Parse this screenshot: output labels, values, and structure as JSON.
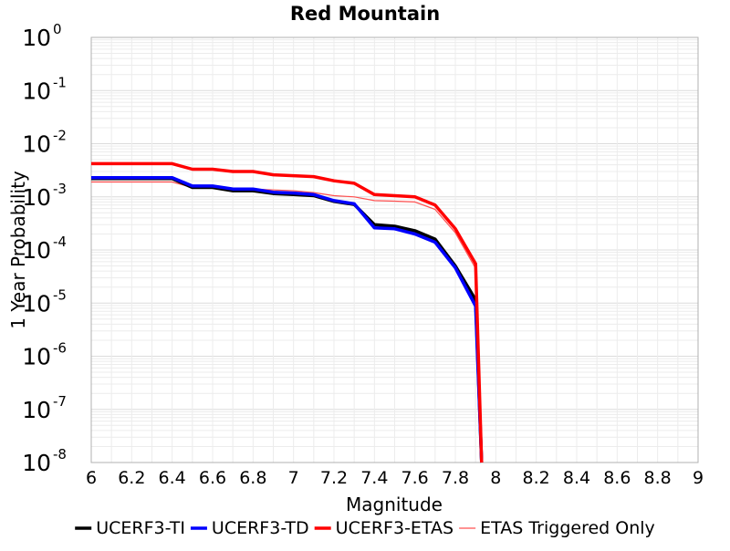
{
  "chart_data": {
    "type": "line",
    "title": "Red Mountain",
    "xlabel": "Magnitude",
    "ylabel": "1 Year Probability",
    "xlim": [
      6,
      9
    ],
    "ylim": [
      1e-08,
      1
    ],
    "yscale": "log",
    "grid": true,
    "legend_position": "bottom",
    "x_ticks": [
      "6",
      "6.2",
      "6.4",
      "6.6",
      "6.8",
      "7",
      "7.2",
      "7.4",
      "7.6",
      "7.8",
      "8",
      "8.2",
      "8.4",
      "8.6",
      "8.8",
      "9"
    ],
    "y_ticks": [
      {
        "base": "10",
        "exp": "0"
      },
      {
        "base": "10",
        "exp": "-1"
      },
      {
        "base": "10",
        "exp": "-2"
      },
      {
        "base": "10",
        "exp": "-3"
      },
      {
        "base": "10",
        "exp": "-4"
      },
      {
        "base": "10",
        "exp": "-5"
      },
      {
        "base": "10",
        "exp": "-6"
      },
      {
        "base": "10",
        "exp": "-7"
      },
      {
        "base": "10",
        "exp": "-8"
      }
    ],
    "series": [
      {
        "name": "ETAS Triggered Only",
        "color": "#ff5050",
        "style": "thin",
        "x": [
          6.0,
          6.4,
          6.5,
          6.6,
          6.7,
          6.8,
          6.9,
          7.0,
          7.1,
          7.2,
          7.3,
          7.4,
          7.5,
          7.6,
          7.7,
          7.8,
          7.9,
          7.93
        ],
        "y": [
          0.0019,
          0.0019,
          0.0015,
          0.0015,
          0.0014,
          0.0014,
          0.00135,
          0.0013,
          0.0012,
          0.00105,
          0.001,
          0.00085,
          0.00083,
          0.0008,
          0.00058,
          0.00021,
          4.5e-05,
          1e-08
        ]
      },
      {
        "name": "UCERF3-TI",
        "color": "#000000",
        "style": "thick",
        "x": [
          6.0,
          6.4,
          6.5,
          6.6,
          6.7,
          6.8,
          6.9,
          7.0,
          7.1,
          7.2,
          7.3,
          7.4,
          7.5,
          7.6,
          7.7,
          7.8,
          7.9,
          7.93
        ],
        "y": [
          0.0022,
          0.0022,
          0.0015,
          0.0015,
          0.0013,
          0.0013,
          0.00115,
          0.0011,
          0.00105,
          0.00082,
          0.00072,
          0.0003,
          0.00028,
          0.00023,
          0.00016,
          5e-05,
          1.15e-05,
          1e-08
        ]
      },
      {
        "name": "UCERF3-TD",
        "color": "#0000ff",
        "style": "thick",
        "x": [
          6.0,
          6.4,
          6.5,
          6.6,
          6.7,
          6.8,
          6.9,
          7.0,
          7.1,
          7.2,
          7.3,
          7.4,
          7.5,
          7.6,
          7.7,
          7.8,
          7.9,
          7.93
        ],
        "y": [
          0.0023,
          0.0023,
          0.0016,
          0.0016,
          0.0014,
          0.0014,
          0.00122,
          0.00118,
          0.0011,
          0.00085,
          0.00074,
          0.00026,
          0.00025,
          0.0002,
          0.00014,
          4.6e-05,
          8.8e-06,
          1e-08
        ]
      },
      {
        "name": "UCERF3-ETAS",
        "color": "#ff0000",
        "style": "thick",
        "x": [
          6.0,
          6.4,
          6.5,
          6.6,
          6.7,
          6.8,
          6.9,
          7.0,
          7.1,
          7.2,
          7.3,
          7.4,
          7.5,
          7.6,
          7.7,
          7.8,
          7.9,
          7.93
        ],
        "y": [
          0.0042,
          0.0042,
          0.0033,
          0.0033,
          0.003,
          0.003,
          0.0026,
          0.0025,
          0.0024,
          0.002,
          0.0018,
          0.0011,
          0.00105,
          0.001,
          0.0007,
          0.00025,
          5.5e-05,
          1e-08
        ]
      }
    ],
    "legend": [
      {
        "label": "UCERF3-TI",
        "color": "#000000",
        "style": "thick"
      },
      {
        "label": "UCERF3-TD",
        "color": "#0000ff",
        "style": "thick"
      },
      {
        "label": "UCERF3-ETAS",
        "color": "#ff0000",
        "style": "thick"
      },
      {
        "label": "ETAS Triggered Only",
        "color": "#ff5050",
        "style": "thin"
      }
    ]
  }
}
